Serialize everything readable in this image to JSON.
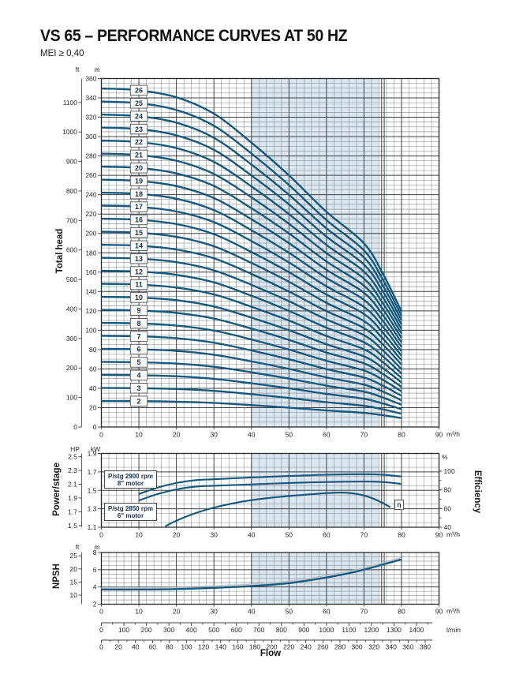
{
  "title": "VS 65 – PERFORMANCE CURVES AT 50 HZ",
  "subtitle": "MEI ≥ 0,40",
  "flow_label": "Flow",
  "units": {
    "m3h": "m³/h",
    "lmin": "l/min",
    "ft": "ft",
    "m": "m",
    "hp": "HP",
    "kw": "kW",
    "percent": "%"
  },
  "colors": {
    "curve": "#11587e",
    "band": "#dce6ee",
    "grid_minor": "#82878c",
    "grid_major": "#3c4043",
    "border": "#26292c",
    "text": "#26292c",
    "annot": "#16304d",
    "npsh_halo": "#b3bdc6"
  },
  "flow_scale": {
    "unit": "m³/h",
    "ticks": [
      0,
      10,
      20,
      30,
      40,
      50,
      60,
      70,
      80,
      90
    ],
    "minor_step": 2,
    "duty_band": [
      40,
      74
    ],
    "edge_lines": [
      74.7,
      75.4
    ]
  },
  "chart_data": [
    {
      "type": "line",
      "name": "total-head-curves",
      "ylabel": "Total head",
      "y_m": {
        "unit": "m",
        "range": [
          0,
          360
        ],
        "major": 20,
        "minor": 5,
        "ticks": [
          0,
          20,
          40,
          60,
          80,
          100,
          120,
          140,
          160,
          180,
          200,
          220,
          240,
          260,
          280,
          300,
          320,
          340,
          360
        ]
      },
      "y_ft": {
        "unit": "ft",
        "ticks": [
          0,
          100,
          200,
          300,
          400,
          500,
          600,
          700,
          800,
          900,
          1000,
          1100
        ]
      },
      "stages": [
        2,
        3,
        4,
        5,
        6,
        7,
        8,
        9,
        10,
        11,
        12,
        13,
        14,
        15,
        16,
        17,
        18,
        19,
        20,
        21,
        22,
        23,
        24,
        25,
        26
      ],
      "flows": [
        0,
        10,
        20,
        30,
        40,
        50,
        60,
        70,
        75,
        80
      ],
      "per_stage_head_m": [
        13.45,
        13.38,
        13.1,
        12.45,
        11.3,
        10.0,
        8.55,
        7.3,
        6.1,
        4.6
      ],
      "stage_label_flow": 10
    },
    {
      "type": "line",
      "name": "power-and-efficiency",
      "ylabel_left": "Power/stage",
      "ylabel_right": "Efficiency",
      "y_kw": {
        "unit": "kW",
        "range": [
          1.1,
          1.9
        ],
        "major": 0.2,
        "minor": 0.05,
        "ticks": [
          "1.9",
          "1.7",
          "1.5",
          "1.3",
          "1.1"
        ]
      },
      "y_hp": {
        "unit": "HP",
        "ticks": [
          "2.5",
          "2.3",
          "2.1",
          "1.9",
          "1.7",
          "1.5"
        ]
      },
      "y_eff": {
        "unit": "%",
        "range": [
          40,
          100
        ],
        "minor": 10,
        "ticks": [
          100,
          80,
          60,
          40
        ]
      },
      "series": [
        {
          "name": "P/stg 2900 rpm 8\" motor",
          "axis": "kw",
          "x": [
            10,
            15,
            20,
            25,
            30,
            40,
            50,
            60,
            70,
            75,
            80
          ],
          "y": [
            1.46,
            1.53,
            1.58,
            1.61,
            1.62,
            1.64,
            1.655,
            1.67,
            1.675,
            1.67,
            1.65
          ]
        },
        {
          "name": "P/stg 2850 rpm 6\" motor",
          "axis": "kw",
          "x": [
            10,
            15,
            20,
            25,
            30,
            40,
            50,
            60,
            70,
            75,
            80
          ],
          "y": [
            1.39,
            1.46,
            1.51,
            1.54,
            1.55,
            1.565,
            1.58,
            1.59,
            1.595,
            1.59,
            1.57
          ]
        },
        {
          "name": "Efficiency (η)",
          "axis": "eff",
          "x": [
            17,
            20,
            25,
            30,
            35,
            40,
            45,
            50,
            55,
            60,
            65,
            70,
            74,
            77
          ],
          "y": [
            41,
            47,
            55,
            61,
            65.5,
            69,
            71.5,
            73.5,
            75,
            76.5,
            77,
            74,
            68,
            61.5
          ]
        }
      ],
      "annotations": {
        "p2900": [
          "P/stg 2900 rpm",
          "8\" motor"
        ],
        "p2850": [
          "P/stg 2850 rpm",
          "6\" motor"
        ],
        "eta": "η"
      }
    },
    {
      "type": "line",
      "name": "npsh-curve",
      "ylabel": "NPSH",
      "y_m": {
        "unit": "m",
        "range": [
          2,
          8
        ],
        "major": 2,
        "minor": 0.5,
        "ticks": [
          8,
          6,
          4,
          2
        ]
      },
      "y_ft": {
        "unit": "ft",
        "ticks": [
          25,
          20,
          15,
          10
        ]
      },
      "series": [
        {
          "name": "NPSH",
          "x": [
            0,
            10,
            20,
            30,
            40,
            50,
            60,
            65,
            70,
            75,
            80
          ],
          "y": [
            3.7,
            3.7,
            3.75,
            3.9,
            4.1,
            4.45,
            5.1,
            5.5,
            6.0,
            6.6,
            7.2
          ]
        }
      ]
    }
  ],
  "bottom_scales": {
    "lmin": {
      "unit": "l/min",
      "label_step": 100,
      "minor_step": 50,
      "ticks": [
        0,
        100,
        200,
        300,
        400,
        500,
        600,
        700,
        800,
        900,
        1000,
        1100,
        1200,
        1300,
        1400
      ],
      "per_m3h": 16.6667
    },
    "gpm": {
      "unit": "",
      "label_step": 20,
      "minor_step": 10,
      "ticks": [
        0,
        20,
        40,
        60,
        80,
        100,
        120,
        140,
        160,
        180,
        200,
        220,
        240,
        260,
        280,
        300,
        320,
        340,
        360,
        380
      ],
      "per_m3h": 4.4029
    }
  }
}
